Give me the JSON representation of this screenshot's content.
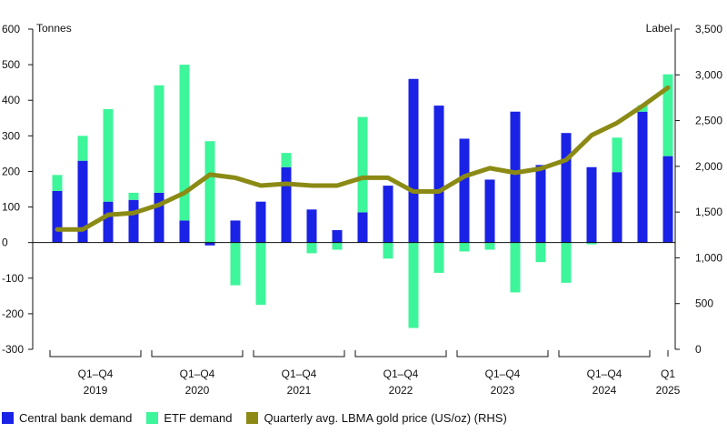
{
  "colors": {
    "central_bank": "#1a22e6",
    "etf": "#3df59a",
    "price": "#8b8a14",
    "axis": "#111111",
    "grid": "#d9d9d9"
  },
  "chart_data": {
    "type": "bar",
    "title": "",
    "ylabel": "Tonnes",
    "y2label": "Label",
    "ylim": [
      -300,
      600
    ],
    "y2lim": [
      0,
      3500
    ],
    "yticks": [
      "-300",
      "-200",
      "-100",
      "0",
      "100",
      "200",
      "300",
      "400",
      "500",
      "600"
    ],
    "y2ticks": [
      "0",
      "500",
      "1,000",
      "1,500",
      "2,000",
      "2,500",
      "3,000",
      "3,500"
    ],
    "groups": [
      {
        "label": [
          "Q1–Q4",
          "2019"
        ],
        "count": 4
      },
      {
        "label": [
          "Q1–Q4",
          "2020"
        ],
        "count": 4
      },
      {
        "label": [
          "Q1–Q4",
          "2021"
        ],
        "count": 4
      },
      {
        "label": [
          "Q1–Q4",
          "2022"
        ],
        "count": 4
      },
      {
        "label": [
          "Q1–Q4",
          "2023"
        ],
        "count": 4
      },
      {
        "label": [
          "Q1–Q4",
          "2024"
        ],
        "count": 4
      },
      {
        "label": [
          "Q1",
          "2025"
        ],
        "count": 1
      }
    ],
    "categories": [
      "Q1 2019",
      "Q2 2019",
      "Q3 2019",
      "Q4 2019",
      "Q1 2020",
      "Q2 2020",
      "Q3 2020",
      "Q4 2020",
      "Q1 2021",
      "Q2 2021",
      "Q3 2021",
      "Q4 2021",
      "Q1 2022",
      "Q2 2022",
      "Q3 2022",
      "Q4 2022",
      "Q1 2023",
      "Q2 2023",
      "Q3 2023",
      "Q4 2023",
      "Q1 2024",
      "Q2 2024",
      "Q3 2024",
      "Q4 2024",
      "Q1 2025"
    ],
    "series": [
      {
        "name": "Central bank demand",
        "type": "bar",
        "values": [
          145,
          230,
          115,
          120,
          140,
          62,
          -8,
          62,
          115,
          212,
          93,
          35,
          85,
          160,
          460,
          385,
          292,
          177,
          368,
          218,
          308,
          212,
          198,
          368,
          243
        ]
      },
      {
        "name": "ETF demand",
        "type": "bar",
        "values": [
          45,
          70,
          260,
          20,
          302,
          438,
          285,
          -120,
          -175,
          40,
          -30,
          -20,
          268,
          -45,
          -240,
          -85,
          -25,
          -20,
          -140,
          -55,
          -113,
          -5,
          97,
          18,
          230
        ]
      },
      {
        "name": "Quarterly avg. LBMA gold price (US/oz) (RHS)",
        "type": "line",
        "axis": "right",
        "values": [
          1310,
          1310,
          1470,
          1490,
          1580,
          1710,
          1910,
          1875,
          1790,
          1810,
          1790,
          1790,
          1875,
          1875,
          1725,
          1725,
          1890,
          1980,
          1930,
          1975,
          2070,
          2340,
          2475,
          2660,
          2860
        ]
      }
    ]
  }
}
